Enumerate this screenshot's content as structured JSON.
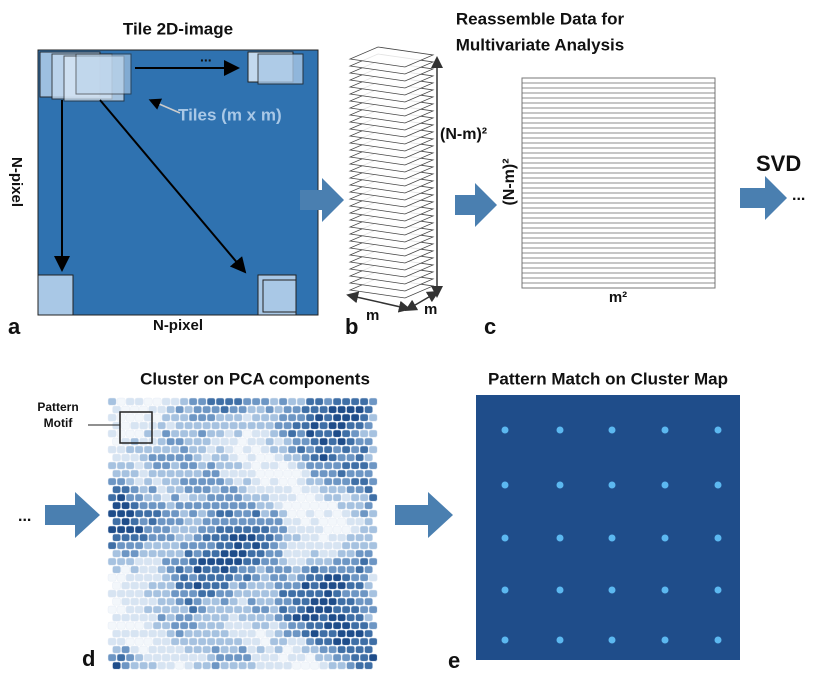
{
  "panels": {
    "a": {
      "label": "a",
      "title": "Tile 2D-image",
      "ellipsis": "...",
      "tiles_label": "Tiles (m x m)",
      "y_label": "N-pixel",
      "x_label": "N-pixel"
    },
    "b": {
      "label": "b",
      "height_label": "(N-m)²",
      "width_labels": [
        "m",
        "m"
      ]
    },
    "c": {
      "label": "c",
      "title": [
        "Reassemble Data for",
        "Multivariate Analysis"
      ],
      "y_label": "(N-m)²",
      "x_label": "m²",
      "next": "SVD",
      "ellipsis": "..."
    },
    "d": {
      "label": "d",
      "title": "Cluster on PCA components",
      "motif_label": [
        "Pattern",
        "Motif"
      ],
      "ellipsis": "..."
    },
    "e": {
      "label": "e",
      "title": "Pattern Match on Cluster Map"
    }
  }
}
